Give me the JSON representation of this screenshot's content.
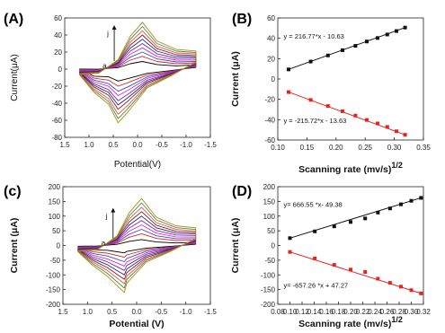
{
  "chart_data": [
    {
      "panel_label": "(A)",
      "type": "line",
      "xlabel": "Potential(V)",
      "ylabel": "Current(μA)",
      "xlim": [
        1.5,
        -1.5
      ],
      "ylim": [
        -80,
        60
      ],
      "xticks": [
        "1.5",
        "1.0",
        "0.5",
        "0.0",
        "-0.5",
        "-1.0",
        "-1.5"
      ],
      "yticks": [
        "60",
        "40",
        "20",
        "0",
        "-20",
        "-40",
        "-60",
        "-80"
      ],
      "annotations": [
        "a",
        "j"
      ],
      "series": [
        {
          "color": "#000000",
          "anodic_peak": {
            "x": -0.1,
            "y": 9
          },
          "cathodic_peak": {
            "x": 0.4,
            "y": -14
          }
        },
        {
          "color": "#e8231d",
          "anodic_peak": {
            "x": -0.1,
            "y": 15
          },
          "cathodic_peak": {
            "x": 0.4,
            "y": -20
          }
        },
        {
          "color": "#2f4fd4",
          "anodic_peak": {
            "x": -0.1,
            "y": 20
          },
          "cathodic_peak": {
            "x": 0.4,
            "y": -26
          }
        },
        {
          "color": "#d92bd1",
          "anodic_peak": {
            "x": -0.1,
            "y": 25
          },
          "cathodic_peak": {
            "x": 0.4,
            "y": -31
          }
        },
        {
          "color": "#7a2a9a",
          "anodic_peak": {
            "x": -0.1,
            "y": 30
          },
          "cathodic_peak": {
            "x": 0.4,
            "y": -37
          }
        },
        {
          "color": "#1f2a8a",
          "anodic_peak": {
            "x": -0.1,
            "y": 35
          },
          "cathodic_peak": {
            "x": 0.4,
            "y": -42
          }
        },
        {
          "color": "#8b1a1a",
          "anodic_peak": {
            "x": -0.1,
            "y": 40
          },
          "cathodic_peak": {
            "x": 0.4,
            "y": -47
          }
        },
        {
          "color": "#e2553c",
          "anodic_peak": {
            "x": -0.1,
            "y": 45
          },
          "cathodic_peak": {
            "x": 0.4,
            "y": -53
          }
        },
        {
          "color": "#3d8a5a",
          "anodic_peak": {
            "x": -0.1,
            "y": 50
          },
          "cathodic_peak": {
            "x": 0.4,
            "y": -58
          }
        },
        {
          "color": "#b8860b",
          "anodic_peak": {
            "x": -0.1,
            "y": 55
          },
          "cathodic_peak": {
            "x": 0.4,
            "y": -63
          }
        }
      ]
    },
    {
      "panel_label": "(B)",
      "type": "scatter",
      "xlabel": "Scanning rate (mv/s)",
      "xlabel_sup": "1/2",
      "ylabel": "Current (μA)",
      "xlim": [
        0.08,
        0.35
      ],
      "ylim": [
        -70,
        70
      ],
      "xticks": [
        "0.10",
        "0.15",
        "0.20",
        "0.25",
        "0.30",
        "0.35"
      ],
      "yticks": [
        "60",
        "40",
        "20",
        "0",
        "-20",
        "-40",
        "-60"
      ],
      "series": [
        {
          "color": "#111111",
          "equation": "y = 216.77*x - 10.63",
          "x": [
            0.1,
            0.141,
            0.173,
            0.2,
            0.224,
            0.245,
            0.265,
            0.283,
            0.3,
            0.316
          ],
          "y": [
            11,
            20,
            27,
            33,
            38,
            43,
            47,
            51,
            55,
            59
          ]
        },
        {
          "color": "#e8231d",
          "equation": "y = -215.72*x - 13.63",
          "x": [
            0.1,
            0.141,
            0.173,
            0.2,
            0.224,
            0.245,
            0.265,
            0.283,
            0.3,
            0.316
          ],
          "y": [
            -15,
            -24,
            -31,
            -37,
            -42,
            -47,
            -51,
            -55,
            -60,
            -64
          ]
        }
      ]
    },
    {
      "panel_label": "(c)",
      "type": "line",
      "xlabel": "Potential (V)",
      "ylabel": "Current (μA)",
      "xlim": [
        1.5,
        -1.5
      ],
      "ylim": [
        -200,
        200
      ],
      "xticks": [
        "1.5",
        "1.0",
        "0.5",
        "0.0",
        "-0.5",
        "-1.0",
        "-1.5"
      ],
      "yticks": [
        "200",
        "150",
        "100",
        "50",
        "0",
        "-50",
        "-100",
        "-150",
        "-200"
      ],
      "annotations": [
        "a",
        "j"
      ],
      "series": [
        {
          "color": "#000000",
          "anodic_peak": {
            "x": -0.1,
            "y": 20
          },
          "cathodic_peak": {
            "x": 0.25,
            "y": -25
          }
        },
        {
          "color": "#e8231d",
          "anodic_peak": {
            "x": -0.1,
            "y": 40
          },
          "cathodic_peak": {
            "x": 0.25,
            "y": -40
          }
        },
        {
          "color": "#2f4fd4",
          "anodic_peak": {
            "x": -0.1,
            "y": 55
          },
          "cathodic_peak": {
            "x": 0.25,
            "y": -55
          }
        },
        {
          "color": "#d92bd1",
          "anodic_peak": {
            "x": -0.1,
            "y": 70
          },
          "cathodic_peak": {
            "x": 0.25,
            "y": -70
          }
        },
        {
          "color": "#7a2a9a",
          "anodic_peak": {
            "x": -0.1,
            "y": 85
          },
          "cathodic_peak": {
            "x": 0.25,
            "y": -85
          }
        },
        {
          "color": "#1f2a8a",
          "anodic_peak": {
            "x": -0.1,
            "y": 100
          },
          "cathodic_peak": {
            "x": 0.25,
            "y": -100
          }
        },
        {
          "color": "#8b1a1a",
          "anodic_peak": {
            "x": -0.1,
            "y": 115
          },
          "cathodic_peak": {
            "x": 0.25,
            "y": -115
          }
        },
        {
          "color": "#e2553c",
          "anodic_peak": {
            "x": -0.1,
            "y": 130
          },
          "cathodic_peak": {
            "x": 0.25,
            "y": -130
          }
        },
        {
          "color": "#3d8a5a",
          "anodic_peak": {
            "x": -0.1,
            "y": 145
          },
          "cathodic_peak": {
            "x": 0.25,
            "y": -145
          }
        },
        {
          "color": "#b8860b",
          "anodic_peak": {
            "x": -0.1,
            "y": 160
          },
          "cathodic_peak": {
            "x": 0.25,
            "y": -160
          }
        }
      ]
    },
    {
      "panel_label": "(D)",
      "type": "scatter",
      "xlabel": "Scanning rate (mv/s)",
      "xlabel_sup": "1/2",
      "ylabel": "Current (μA)",
      "xlim": [
        0.08,
        0.32
      ],
      "ylim": [
        -200,
        200
      ],
      "xticks": [
        "0.08",
        "0.10",
        "0.12",
        "0.14",
        "0.16",
        "0.18",
        "0.20",
        "0.22",
        "0.24",
        "0.26",
        "0.28",
        "0.30",
        "0.32"
      ],
      "yticks": [
        "200",
        "150",
        "100",
        "50",
        "0",
        "-50",
        "-100",
        "-150",
        "-200"
      ],
      "series": [
        {
          "color": "#111111",
          "equation": "y= 666.55 *x- 49.38",
          "x": [
            0.1,
            0.141,
            0.173,
            0.2,
            0.224,
            0.245,
            0.265,
            0.283,
            0.3,
            0.316
          ],
          "y": [
            25,
            48,
            65,
            80,
            92,
            112,
            126,
            140,
            152,
            162
          ]
        },
        {
          "color": "#e8231d",
          "equation": "y= -657.26 *x + 47.27",
          "x": [
            0.1,
            0.141,
            0.173,
            0.2,
            0.224,
            0.245,
            0.265,
            0.283,
            0.3,
            0.316
          ],
          "y": [
            -22,
            -44,
            -66,
            -82,
            -90,
            -113,
            -127,
            -140,
            -152,
            -163
          ]
        }
      ]
    }
  ]
}
